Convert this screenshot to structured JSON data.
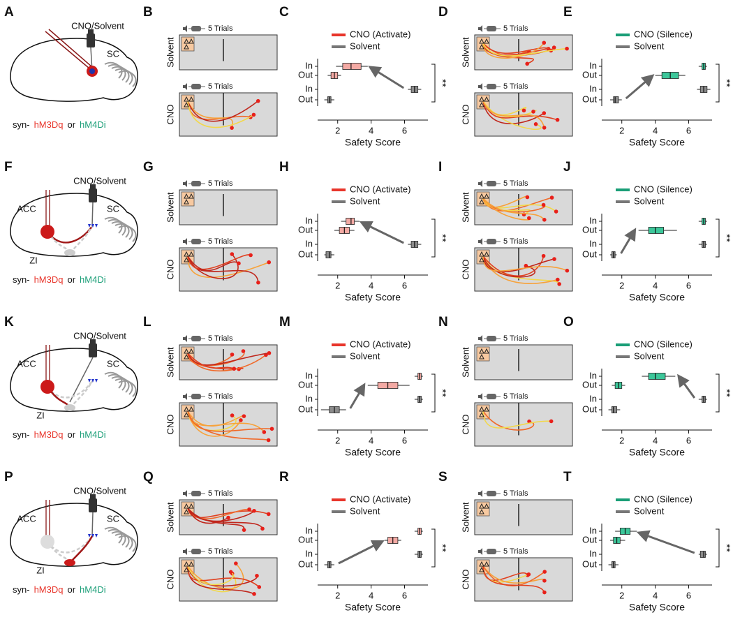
{
  "rows": [
    {
      "diagram": {
        "letter": "A",
        "drug": "CNO/Solvent",
        "sc": "SC",
        "footer": {
          "prefix": "syn-",
          "activate": "hM3Dq",
          "joiner": "or",
          "silence": "hM4Di"
        }
      },
      "tracks_left": {
        "letter": "B",
        "trials": [
          "5 Trials",
          "5 Trials"
        ],
        "groups": [
          "Solvent",
          "CNO"
        ]
      },
      "box_left": {
        "type": "box",
        "letter": "C",
        "series": [
          {
            "name": "CNO (Activate)",
            "color": "#e8352b",
            "fill": "#f4aaa4"
          },
          {
            "name": "Solvent",
            "color": "#777777",
            "fill": "#8c8c8c"
          }
        ],
        "categories": [
          "In",
          "Out",
          "In",
          "Out"
        ],
        "boxes": [
          [
            1.9,
            2.3,
            2.8,
            3.4,
            3.8
          ],
          [
            1.4,
            1.6,
            1.8,
            2.0,
            2.2
          ],
          [
            6.2,
            6.4,
            6.6,
            6.8,
            7.0
          ],
          [
            1.2,
            1.4,
            1.5,
            1.6,
            1.8
          ]
        ],
        "xlim": [
          0.8,
          7.4
        ],
        "xticks": [
          2,
          4,
          6
        ],
        "xlabel": "Safety Score",
        "significance": "**"
      },
      "tracks_right": {
        "letter": "D",
        "trials": [
          "5 Trials",
          "5 Trials"
        ],
        "groups": [
          "Solvent",
          "CNO"
        ]
      },
      "box_right": {
        "type": "box",
        "letter": "E",
        "series": [
          {
            "name": "CNO (Silence)",
            "color": "#1a9e77",
            "fill": "#3cc79a"
          },
          {
            "name": "Solvent",
            "color": "#777777",
            "fill": "#8c8c8c"
          }
        ],
        "categories": [
          "In",
          "Out",
          "In",
          "Out"
        ],
        "boxes": [
          [
            6.6,
            6.8,
            6.9,
            7.0,
            7.1
          ],
          [
            4.0,
            4.4,
            4.9,
            5.4,
            5.8
          ],
          [
            6.5,
            6.7,
            6.9,
            7.1,
            7.3
          ],
          [
            1.3,
            1.5,
            1.6,
            1.8,
            2.0
          ]
        ],
        "xlim": [
          0.8,
          7.4
        ],
        "xticks": [
          2,
          4,
          6
        ],
        "xlabel": "Safety Score",
        "significance": "**"
      }
    },
    {
      "diagram": {
        "letter": "F",
        "drug": "CNO/Solvent",
        "sc": "SC",
        "acc": "ACC",
        "zi": "ZI",
        "footer": {
          "prefix": "syn-",
          "activate": "hM3Dq",
          "joiner": "or",
          "silence": "hM4Di"
        }
      },
      "tracks_left": {
        "letter": "G",
        "trials": [
          "5 Trials",
          "5 Trials"
        ],
        "groups": [
          "Solvent",
          "CNO"
        ]
      },
      "box_left": {
        "type": "box",
        "letter": "H",
        "series": [
          {
            "name": "CNO (Activate)",
            "color": "#e8352b",
            "fill": "#f4aaa4"
          },
          {
            "name": "Solvent",
            "color": "#777777",
            "fill": "#8c8c8c"
          }
        ],
        "categories": [
          "In",
          "Out",
          "In",
          "Out"
        ],
        "boxes": [
          [
            2.2,
            2.5,
            2.8,
            3.0,
            3.3
          ],
          [
            1.8,
            2.1,
            2.4,
            2.7,
            3.0
          ],
          [
            6.2,
            6.4,
            6.6,
            6.8,
            7.0
          ],
          [
            1.2,
            1.3,
            1.5,
            1.6,
            1.8
          ]
        ],
        "xlim": [
          0.8,
          7.4
        ],
        "xticks": [
          2,
          4,
          6
        ],
        "xlabel": "Safety Score",
        "significance": "**"
      },
      "tracks_right": {
        "letter": "I",
        "trials": [
          "5 Trials",
          "5 Trials"
        ],
        "groups": [
          "Solvent",
          "CNO"
        ]
      },
      "box_right": {
        "type": "box",
        "letter": "J",
        "series": [
          {
            "name": "CNO (Silence)",
            "color": "#1a9e77",
            "fill": "#3cc79a"
          },
          {
            "name": "Solvent",
            "color": "#777777",
            "fill": "#8c8c8c"
          }
        ],
        "categories": [
          "In",
          "Out",
          "In",
          "Out"
        ],
        "boxes": [
          [
            6.6,
            6.8,
            6.9,
            7.0,
            7.1
          ],
          [
            3.0,
            3.6,
            4.0,
            4.5,
            5.3
          ],
          [
            6.6,
            6.8,
            6.9,
            7.0,
            7.1
          ],
          [
            1.3,
            1.4,
            1.5,
            1.6,
            1.7
          ]
        ],
        "xlim": [
          0.8,
          7.4
        ],
        "xticks": [
          2,
          4,
          6
        ],
        "xlabel": "Safety Score",
        "significance": "**"
      }
    },
    {
      "diagram": {
        "letter": "K",
        "drug": "CNO/Solvent",
        "sc": "SC",
        "acc": "ACC",
        "zi": "ZI",
        "footer": {
          "prefix": "syn-",
          "activate": "hM3Dq",
          "joiner": "or",
          "silence": "hM4Di"
        }
      },
      "tracks_left": {
        "letter": "L",
        "trials": [
          "5 Trials",
          "5 Trials"
        ],
        "groups": [
          "Solvent",
          "CNO"
        ]
      },
      "box_left": {
        "type": "box",
        "letter": "M",
        "series": [
          {
            "name": "CNO (Activate)",
            "color": "#e8352b",
            "fill": "#f4aaa4"
          },
          {
            "name": "Solvent",
            "color": "#777777",
            "fill": "#8c8c8c"
          }
        ],
        "categories": [
          "In",
          "Out",
          "In",
          "Out"
        ],
        "boxes": [
          [
            6.6,
            6.8,
            6.9,
            7.0,
            7.1
          ],
          [
            3.8,
            4.4,
            5.0,
            5.6,
            6.3
          ],
          [
            6.6,
            6.8,
            6.9,
            7.0,
            7.1
          ],
          [
            1.0,
            1.5,
            1.8,
            2.1,
            2.5
          ]
        ],
        "xlim": [
          0.8,
          7.4
        ],
        "xticks": [
          2,
          4,
          6
        ],
        "xlabel": "Safety Score",
        "significance": "**"
      },
      "tracks_right": {
        "letter": "N",
        "trials": [
          "5 Trials",
          "5 Trials"
        ],
        "groups": [
          "Solvent",
          "CNO"
        ]
      },
      "box_right": {
        "type": "box",
        "letter": "O",
        "series": [
          {
            "name": "CNO (Silence)",
            "color": "#1a9e77",
            "fill": "#3cc79a"
          },
          {
            "name": "Solvent",
            "color": "#777777",
            "fill": "#8c8c8c"
          }
        ],
        "categories": [
          "In",
          "Out",
          "In",
          "Out"
        ],
        "boxes": [
          [
            3.2,
            3.6,
            4.0,
            4.6,
            5.2
          ],
          [
            1.4,
            1.6,
            1.8,
            2.0,
            2.2
          ],
          [
            6.6,
            6.8,
            6.9,
            7.0,
            7.1
          ],
          [
            1.2,
            1.4,
            1.5,
            1.7,
            1.9
          ]
        ],
        "xlim": [
          0.8,
          7.4
        ],
        "xticks": [
          2,
          4,
          6
        ],
        "xlabel": "Safety Score",
        "significance": "**"
      }
    },
    {
      "diagram": {
        "letter": "P",
        "drug": "CNO/Solvent",
        "sc": "SC",
        "acc": "ACC",
        "zi": "ZI",
        "footer": {
          "prefix": "syn-",
          "activate": "hM3Dq",
          "joiner": "or",
          "silence": "hM4Di"
        }
      },
      "tracks_left": {
        "letter": "Q",
        "trials": [
          "5 Trials",
          "5 Trials"
        ],
        "groups": [
          "Solvent",
          "CNO"
        ]
      },
      "box_left": {
        "type": "box",
        "letter": "R",
        "series": [
          {
            "name": "CNO (Activate)",
            "color": "#e8352b",
            "fill": "#f4aaa4"
          },
          {
            "name": "Solvent",
            "color": "#777777",
            "fill": "#8c8c8c"
          }
        ],
        "categories": [
          "In",
          "Out",
          "In",
          "Out"
        ],
        "boxes": [
          [
            6.6,
            6.8,
            6.9,
            7.0,
            7.1
          ],
          [
            4.8,
            5.0,
            5.3,
            5.6,
            5.8
          ],
          [
            6.6,
            6.8,
            6.9,
            7.0,
            7.1
          ],
          [
            1.2,
            1.4,
            1.5,
            1.6,
            1.8
          ]
        ],
        "xlim": [
          0.8,
          7.4
        ],
        "xticks": [
          2,
          4,
          6
        ],
        "xlabel": "Safety Score",
        "significance": "**"
      },
      "tracks_right": {
        "letter": "S",
        "trials": [
          "5 Trials",
          "5 Trials"
        ],
        "groups": [
          "Solvent",
          "CNO"
        ]
      },
      "box_right": {
        "type": "box",
        "letter": "T",
        "series": [
          {
            "name": "CNO (Silence)",
            "color": "#1a9e77",
            "fill": "#3cc79a"
          },
          {
            "name": "Solvent",
            "color": "#777777",
            "fill": "#8c8c8c"
          }
        ],
        "categories": [
          "In",
          "Out",
          "In",
          "Out"
        ],
        "boxes": [
          [
            1.6,
            1.9,
            2.2,
            2.5,
            2.9
          ],
          [
            1.3,
            1.5,
            1.7,
            1.9,
            2.2
          ],
          [
            6.6,
            6.7,
            6.9,
            7.0,
            7.1
          ],
          [
            1.2,
            1.4,
            1.5,
            1.6,
            1.8
          ]
        ],
        "xlim": [
          0.8,
          7.4
        ],
        "xticks": [
          2,
          4,
          6
        ],
        "xlabel": "Safety Score",
        "significance": "**"
      }
    }
  ]
}
